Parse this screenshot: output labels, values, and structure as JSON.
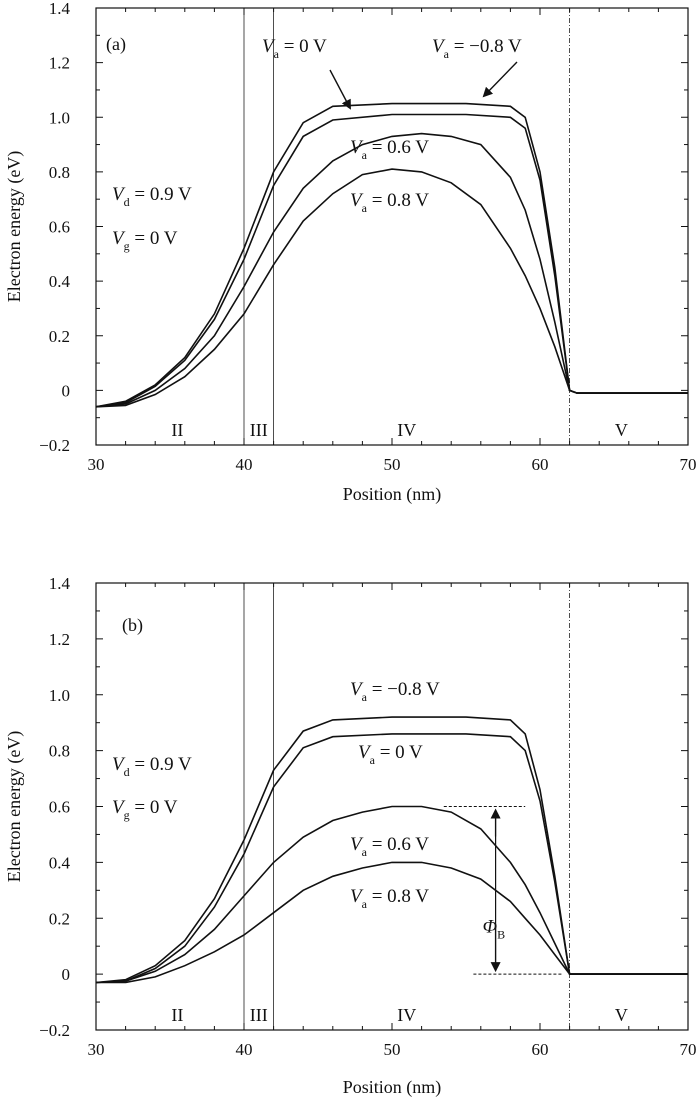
{
  "chart_data": [
    {
      "panel": "(a)",
      "type": "line",
      "xlabel": "Position (nm)",
      "ylabel": "Electron energy (eV)",
      "xlim": [
        30,
        70
      ],
      "ylim": [
        -0.2,
        1.4
      ],
      "xticks": [
        30,
        40,
        50,
        60,
        70
      ],
      "yticks": [
        -0.2,
        0,
        0.2,
        0.4,
        0.6,
        0.8,
        1.0,
        1.2,
        1.4
      ],
      "ytick_labels": [
        "−0.2",
        "0",
        "0.2",
        "0.4",
        "0.6",
        "0.8",
        "1.0",
        "1.2",
        "1.4"
      ],
      "conditions": [
        {
          "symbol": "V",
          "sub": "d",
          "text": " = 0.9 V"
        },
        {
          "symbol": "V",
          "sub": "g",
          "text": " = 0 V"
        }
      ],
      "region_boundaries": [
        40,
        42,
        62
      ],
      "regions": [
        {
          "label": "II",
          "x": 35.5
        },
        {
          "label": "III",
          "x": 41
        },
        {
          "label": "IV",
          "x": 51
        },
        {
          "label": "V",
          "x": 65.5
        }
      ],
      "series": [
        {
          "label": {
            "symbol": "V",
            "sub": "a",
            "text": " = −0.8 V"
          },
          "x": [
            30,
            32,
            34,
            36,
            38,
            40,
            42,
            44,
            46,
            50,
            55,
            58,
            59,
            60,
            61,
            62,
            62.5,
            66,
            70
          ],
          "y": [
            -0.06,
            -0.04,
            0.02,
            0.12,
            0.28,
            0.52,
            0.8,
            0.98,
            1.04,
            1.05,
            1.05,
            1.04,
            1.0,
            0.8,
            0.45,
            0.0,
            -0.01,
            -0.01,
            -0.01
          ]
        },
        {
          "label": {
            "symbol": "V",
            "sub": "a",
            "text": " = 0 V"
          },
          "x": [
            30,
            32,
            34,
            36,
            38,
            40,
            42,
            44,
            46,
            50,
            55,
            58,
            59,
            60,
            61,
            62,
            62.5,
            66,
            70
          ],
          "y": [
            -0.06,
            -0.045,
            0.015,
            0.11,
            0.26,
            0.48,
            0.75,
            0.93,
            0.99,
            1.01,
            1.01,
            1.0,
            0.96,
            0.77,
            0.42,
            0.0,
            -0.01,
            -0.01,
            -0.01
          ]
        },
        {
          "label": {
            "symbol": "V",
            "sub": "a",
            "text": " = 0.6 V"
          },
          "x": [
            30,
            32,
            34,
            36,
            38,
            40,
            42,
            44,
            46,
            48,
            50,
            52,
            54,
            56,
            58,
            59,
            60,
            61,
            62,
            62.5,
            66,
            70
          ],
          "y": [
            -0.06,
            -0.05,
            0.0,
            0.08,
            0.2,
            0.38,
            0.58,
            0.74,
            0.84,
            0.9,
            0.93,
            0.94,
            0.93,
            0.9,
            0.78,
            0.66,
            0.48,
            0.25,
            0.0,
            -0.01,
            -0.01,
            -0.01
          ]
        },
        {
          "label": {
            "symbol": "V",
            "sub": "a",
            "text": " = 0.8 V"
          },
          "x": [
            30,
            32,
            34,
            36,
            38,
            40,
            42,
            44,
            46,
            48,
            50,
            52,
            54,
            56,
            58,
            59,
            60,
            61,
            62,
            62.5,
            66,
            70
          ],
          "y": [
            -0.06,
            -0.055,
            -0.015,
            0.05,
            0.15,
            0.28,
            0.46,
            0.62,
            0.72,
            0.79,
            0.81,
            0.8,
            0.76,
            0.68,
            0.52,
            0.42,
            0.3,
            0.16,
            0.0,
            -0.01,
            -0.01,
            -0.01
          ]
        }
      ]
    },
    {
      "panel": "(b)",
      "type": "line",
      "xlabel": "Position (nm)",
      "ylabel": "Electron energy (eV)",
      "xlim": [
        30,
        70
      ],
      "ylim": [
        -0.2,
        1.4
      ],
      "xticks": [
        30,
        40,
        50,
        60,
        70
      ],
      "yticks": [
        -0.2,
        0,
        0.2,
        0.4,
        0.6,
        0.8,
        1.0,
        1.2,
        1.4
      ],
      "ytick_labels": [
        "−0.2",
        "0",
        "0.2",
        "0.4",
        "0.6",
        "0.8",
        "1.0",
        "1.2",
        "1.4"
      ],
      "conditions": [
        {
          "symbol": "V",
          "sub": "d",
          "text": " = 0.9 V"
        },
        {
          "symbol": "V",
          "sub": "g",
          "text": " = 0 V"
        }
      ],
      "region_boundaries": [
        40,
        42,
        62
      ],
      "regions": [
        {
          "label": "II",
          "x": 35.5
        },
        {
          "label": "III",
          "x": 41
        },
        {
          "label": "IV",
          "x": 51
        },
        {
          "label": "V",
          "x": 65.5
        }
      ],
      "barrier_annotation": {
        "symbol": "Φ",
        "sub": "B",
        "top": 0.6,
        "bottom": 0.0,
        "x": 57
      },
      "series": [
        {
          "label": {
            "symbol": "V",
            "sub": "a",
            "text": " = −0.8 V"
          },
          "x": [
            30,
            32,
            34,
            36,
            38,
            40,
            42,
            44,
            46,
            50,
            55,
            58,
            59,
            60,
            61,
            62,
            62.5,
            66,
            70
          ],
          "y": [
            -0.03,
            -0.02,
            0.03,
            0.12,
            0.27,
            0.48,
            0.73,
            0.87,
            0.91,
            0.92,
            0.92,
            0.91,
            0.86,
            0.66,
            0.35,
            0.0,
            0.0,
            0.0,
            0.0
          ]
        },
        {
          "label": {
            "symbol": "V",
            "sub": "a",
            "text": " = 0 V"
          },
          "x": [
            30,
            32,
            34,
            36,
            38,
            40,
            42,
            44,
            46,
            50,
            55,
            58,
            59,
            60,
            61,
            62,
            62.5,
            66,
            70
          ],
          "y": [
            -0.03,
            -0.025,
            0.02,
            0.1,
            0.24,
            0.43,
            0.67,
            0.81,
            0.85,
            0.86,
            0.86,
            0.85,
            0.8,
            0.62,
            0.33,
            0.0,
            0.0,
            0.0,
            0.0
          ]
        },
        {
          "label": {
            "symbol": "V",
            "sub": "a",
            "text": " = 0.6 V"
          },
          "x": [
            30,
            32,
            34,
            36,
            38,
            40,
            42,
            44,
            46,
            48,
            50,
            52,
            54,
            56,
            58,
            59,
            60,
            61,
            62,
            62.5,
            66,
            70
          ],
          "y": [
            -0.03,
            -0.025,
            0.01,
            0.07,
            0.16,
            0.28,
            0.4,
            0.49,
            0.55,
            0.58,
            0.6,
            0.6,
            0.58,
            0.52,
            0.4,
            0.32,
            0.22,
            0.11,
            0.0,
            0.0,
            0.0,
            0.0
          ]
        },
        {
          "label": {
            "symbol": "V",
            "sub": "a",
            "text": " = 0.8 V"
          },
          "x": [
            30,
            32,
            34,
            36,
            38,
            40,
            42,
            44,
            46,
            48,
            50,
            52,
            54,
            56,
            58,
            59,
            60,
            61,
            62,
            62.5,
            66,
            70
          ],
          "y": [
            -0.03,
            -0.03,
            -0.01,
            0.03,
            0.08,
            0.14,
            0.22,
            0.3,
            0.35,
            0.38,
            0.4,
            0.4,
            0.38,
            0.34,
            0.26,
            0.2,
            0.14,
            0.07,
            0.0,
            0.0,
            0.0,
            0.0
          ]
        }
      ]
    }
  ]
}
